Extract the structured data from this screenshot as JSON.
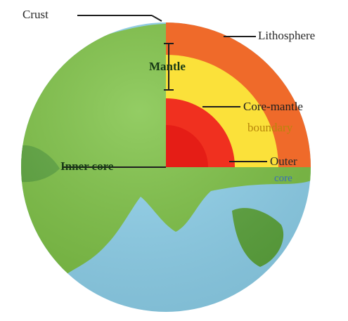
{
  "diagram": {
    "labels": {
      "crust": "Crust",
      "lithosphere": "Lithosphere",
      "mantle": "Mantle",
      "core_mantle_line1": "Core-mantle",
      "core_mantle_line2": "boundary",
      "outer": "Outer",
      "core": "core",
      "inner_core": "Inner core"
    },
    "colors": {
      "ocean": "#8ed3ee",
      "land": "#7cc242",
      "land_dark": "#5aa53a",
      "lithosphere": "#ef6a2a",
      "mantle": "#fbe13a",
      "outer_core": "#f0301f",
      "inner_core": "#e51d16",
      "leader": "#1e1e1e"
    }
  }
}
